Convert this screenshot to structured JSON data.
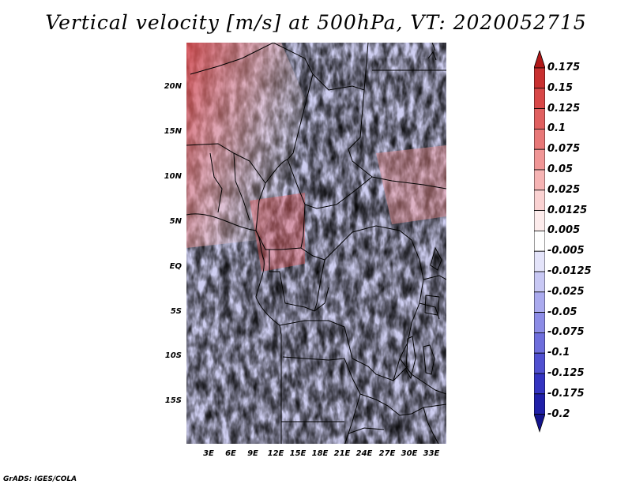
{
  "title": "Vertical velocity [m/s] at 500hPa, VT: 2020052715",
  "credit": "GrADS: IGES/COLA",
  "y_axis_labels": [
    "20N",
    "15N",
    "10N",
    "5N",
    "EQ",
    "5S",
    "10S",
    "15S"
  ],
  "x_axis_labels": [
    "3E",
    "6E",
    "9E",
    "12E",
    "15E",
    "18E",
    "21E",
    "24E",
    "27E",
    "30E",
    "33E"
  ],
  "colorbar": {
    "levels": [
      "0.175",
      "0.15",
      "0.125",
      "0.1",
      "0.075",
      "0.05",
      "0.025",
      "0.0125",
      "0.005",
      "-0.005",
      "-0.0125",
      "-0.025",
      "-0.05",
      "-0.075",
      "-0.1",
      "-0.125",
      "-0.175",
      "-0.2"
    ],
    "colors": [
      "#b01818",
      "#c83030",
      "#d84848",
      "#e06060",
      "#e87878",
      "#f09696",
      "#f6b4b4",
      "#fad2d2",
      "#fdecec",
      "#ffffff",
      "#e4e4fa",
      "#c8c8f4",
      "#aaaaee",
      "#8c8ce6",
      "#6e6edc",
      "#5050d0",
      "#3434c0",
      "#2020a8",
      "#14148c"
    ]
  }
}
